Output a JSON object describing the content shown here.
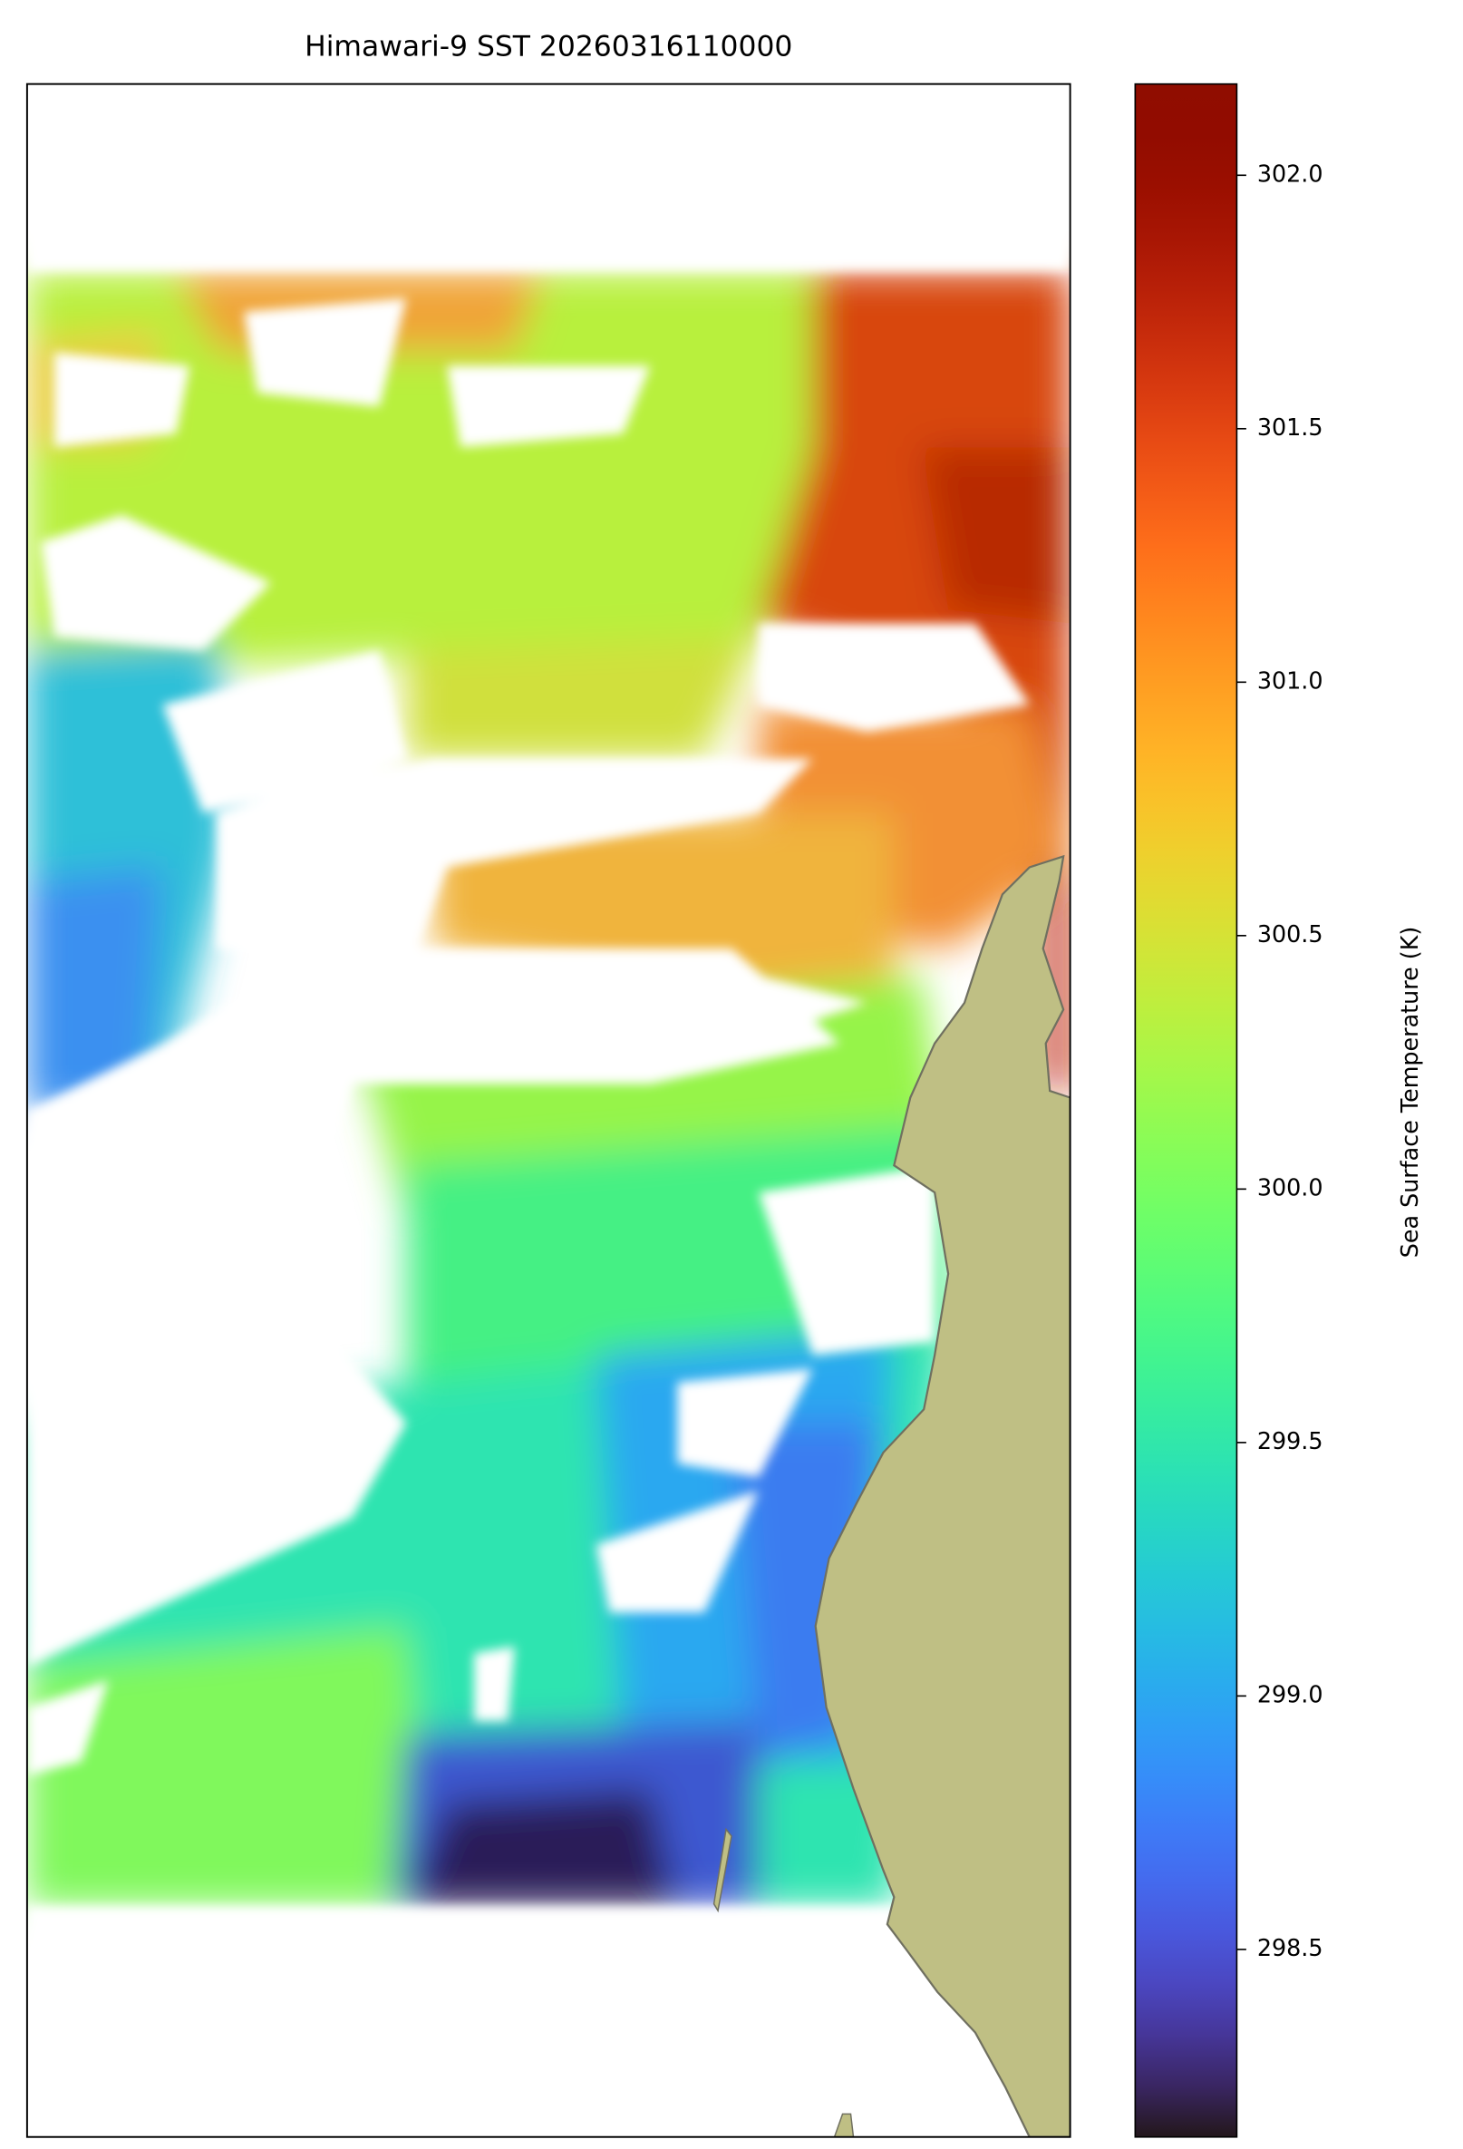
{
  "chart_data": {
    "type": "heatmap",
    "title": "Himawari-9 SST 20260316110000",
    "colorbar": {
      "label": "Sea Surface Temperature (K)",
      "lim": [
        298.13,
        302.18
      ],
      "ticks": [
        298.5,
        {
          "value": 299.0,
          "label": "299.0"
        },
        299.5,
        {
          "value": 300.0,
          "label": "300.0"
        },
        300.5,
        {
          "value": 301.0,
          "label": "301.0"
        },
        301.5,
        {
          "value": 302.0,
          "label": "302.0"
        }
      ],
      "colormap": "turbo"
    }
  }
}
